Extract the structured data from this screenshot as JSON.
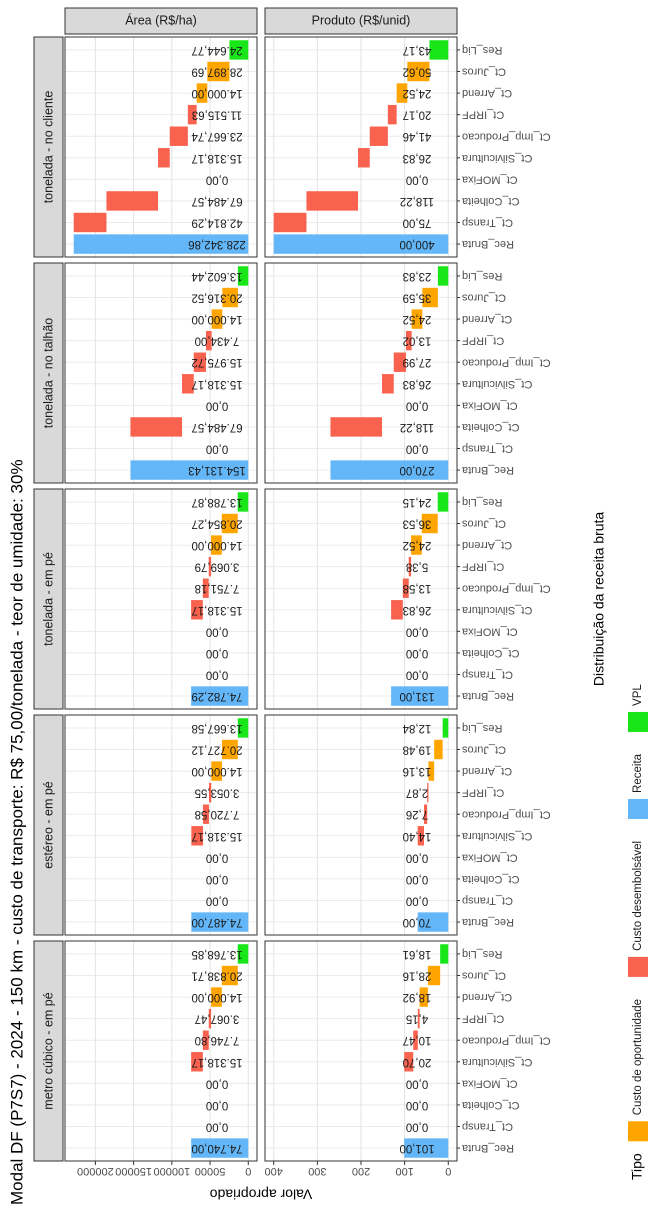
{
  "chart_data": {
    "type": "waterfall",
    "title": "Modal DF (P7S7) - 2024 - 150 km - custo de transporte: R$ 75,00/tonelada - teor de umidade: 30%",
    "y_label": "Valor apropriado",
    "x_label": "Distribuição da receita bruta",
    "categories": [
      "Rec_Bruta",
      "Ct_Transp",
      "Ct_Colheita",
      "Ct_MOFixa",
      "Ct_Silvicultura",
      "Ct_Imp_Producao",
      "Ct_IRPF",
      "Ct_Arrend",
      "Ct_Juros",
      "Res_Liq"
    ],
    "category_types": [
      "Receita",
      "Custo desembolsável",
      "Custo desembolsável",
      "Custo desembolsável",
      "Custo desembolsável",
      "Custo desembolsável",
      "Custo desembolsável",
      "Custo de oportunidade",
      "Custo de oportunidade",
      "VPL"
    ],
    "legend": {
      "title": "Tipo",
      "position": "bottom",
      "items": [
        {
          "name": "Custo de oportunidade",
          "color": "#ffa500"
        },
        {
          "name": "Custo desembolsável",
          "color": "#f8624f"
        },
        {
          "name": "Receita",
          "color": "#63b6f7"
        },
        {
          "name": "VPL",
          "color": "#19e619"
        }
      ]
    },
    "grid": true,
    "rows": [
      {
        "label": "Área (R$/ha)",
        "ylim": [
          -11417,
          239760
        ],
        "yticks": [
          0,
          50000,
          100000,
          150000,
          200000
        ]
      },
      {
        "label": "Produto (R$/unid)",
        "ylim": [
          -20,
          420
        ],
        "yticks": [
          0,
          100,
          200,
          300,
          400
        ]
      }
    ],
    "panels": [
      {
        "label": "metro cúbico - em pé",
        "values": [
          [
            74740.0,
            0,
            0,
            0,
            15318.17,
            7746.8,
            3067.47,
            14000.0,
            20838.71,
            13768.85
          ],
          [
            101.0,
            0,
            0,
            0,
            20.7,
            10.47,
            4.15,
            18.92,
            28.16,
            18.61
          ]
        ],
        "value_labels": [
          [
            "74.740,00",
            "0,00",
            "0,00",
            "0,00",
            "15.318,17",
            "7.746,80",
            "3.067,47",
            "14.000,00",
            "20.838,71",
            "13.768,85"
          ],
          [
            "101,00",
            "0,00",
            "0,00",
            "0,00",
            "20,70",
            "10,47",
            "4,15",
            "18,92",
            "28,16",
            "18,61"
          ]
        ]
      },
      {
        "label": "estéreo - em pé",
        "values": [
          [
            74487.0,
            0,
            0,
            0,
            15318.17,
            7720.58,
            3053.55,
            14000.0,
            20727.12,
            13667.58
          ],
          [
            70.0,
            0,
            0,
            0,
            14.4,
            7.26,
            2.87,
            13.16,
            19.48,
            12.84
          ]
        ],
        "value_labels": [
          [
            "74.487,00",
            "0,00",
            "0,00",
            "0,00",
            "15.318,17",
            "7.720,58",
            "3.053,55",
            "14.000,00",
            "20.727,12",
            "13.667,58"
          ],
          [
            "70,00",
            "0,00",
            "0,00",
            "0,00",
            "14,40",
            "7,26",
            "2,87",
            "13,16",
            "19,48",
            "12,84"
          ]
        ]
      },
      {
        "label": "tonelada - em pé",
        "values": [
          [
            74782.29,
            0,
            0,
            0,
            15318.17,
            7751.18,
            3069.79,
            14000.0,
            20854.27,
            13788.87
          ],
          [
            131.0,
            0,
            0,
            0,
            26.83,
            13.58,
            5.38,
            24.52,
            36.53,
            24.15
          ]
        ],
        "value_labels": [
          [
            "74.782,29",
            "0,00",
            "0,00",
            "0,00",
            "15.318,17",
            "7.751,18",
            "3.069,79",
            "14.000,00",
            "20.854,27",
            "13.788,87"
          ],
          [
            "131,00",
            "0,00",
            "0,00",
            "0,00",
            "26,83",
            "13,58",
            "5,38",
            "24,52",
            "36,53",
            "24,15"
          ]
        ]
      },
      {
        "label": "tonelada - no talhão",
        "values": [
          [
            154131.43,
            0,
            67484.57,
            0,
            15318.17,
            15975.72,
            7434.0,
            14000.0,
            20316.52,
            13602.44
          ],
          [
            270.0,
            0,
            118.22,
            0,
            26.83,
            27.99,
            13.02,
            24.52,
            35.59,
            23.83
          ]
        ],
        "value_labels": [
          [
            "154.131,43",
            "0,00",
            "67.484,57",
            "0,00",
            "15.318,17",
            "15.975,72",
            "7.434,00",
            "14.000,00",
            "20.316,52",
            "13.602,44"
          ],
          [
            "270,00",
            "0,00",
            "118,22",
            "0,00",
            "26,83",
            "27,99",
            "13,02",
            "24,52",
            "35,59",
            "23,83"
          ]
        ]
      },
      {
        "label": "tonelada - no cliente",
        "values": [
          [
            228342.86,
            42814.29,
            67484.57,
            0,
            15318.17,
            23667.74,
            11515.63,
            14000.0,
            28897.69,
            24644.77
          ],
          [
            400.0,
            75.0,
            118.22,
            0,
            26.83,
            41.46,
            20.17,
            24.52,
            50.62,
            43.17
          ]
        ],
        "value_labels": [
          [
            "228.342,86",
            "42.814,29",
            "67.484,57",
            "0,00",
            "15.318,17",
            "23.667,74",
            "11.515,63",
            "14.000,00",
            "28.897,69",
            "24.644,77"
          ],
          [
            "400,00",
            "75,00",
            "118,22",
            "0,00",
            "26,83",
            "41,46",
            "20,17",
            "24,52",
            "50,62",
            "43,17"
          ]
        ]
      }
    ]
  }
}
